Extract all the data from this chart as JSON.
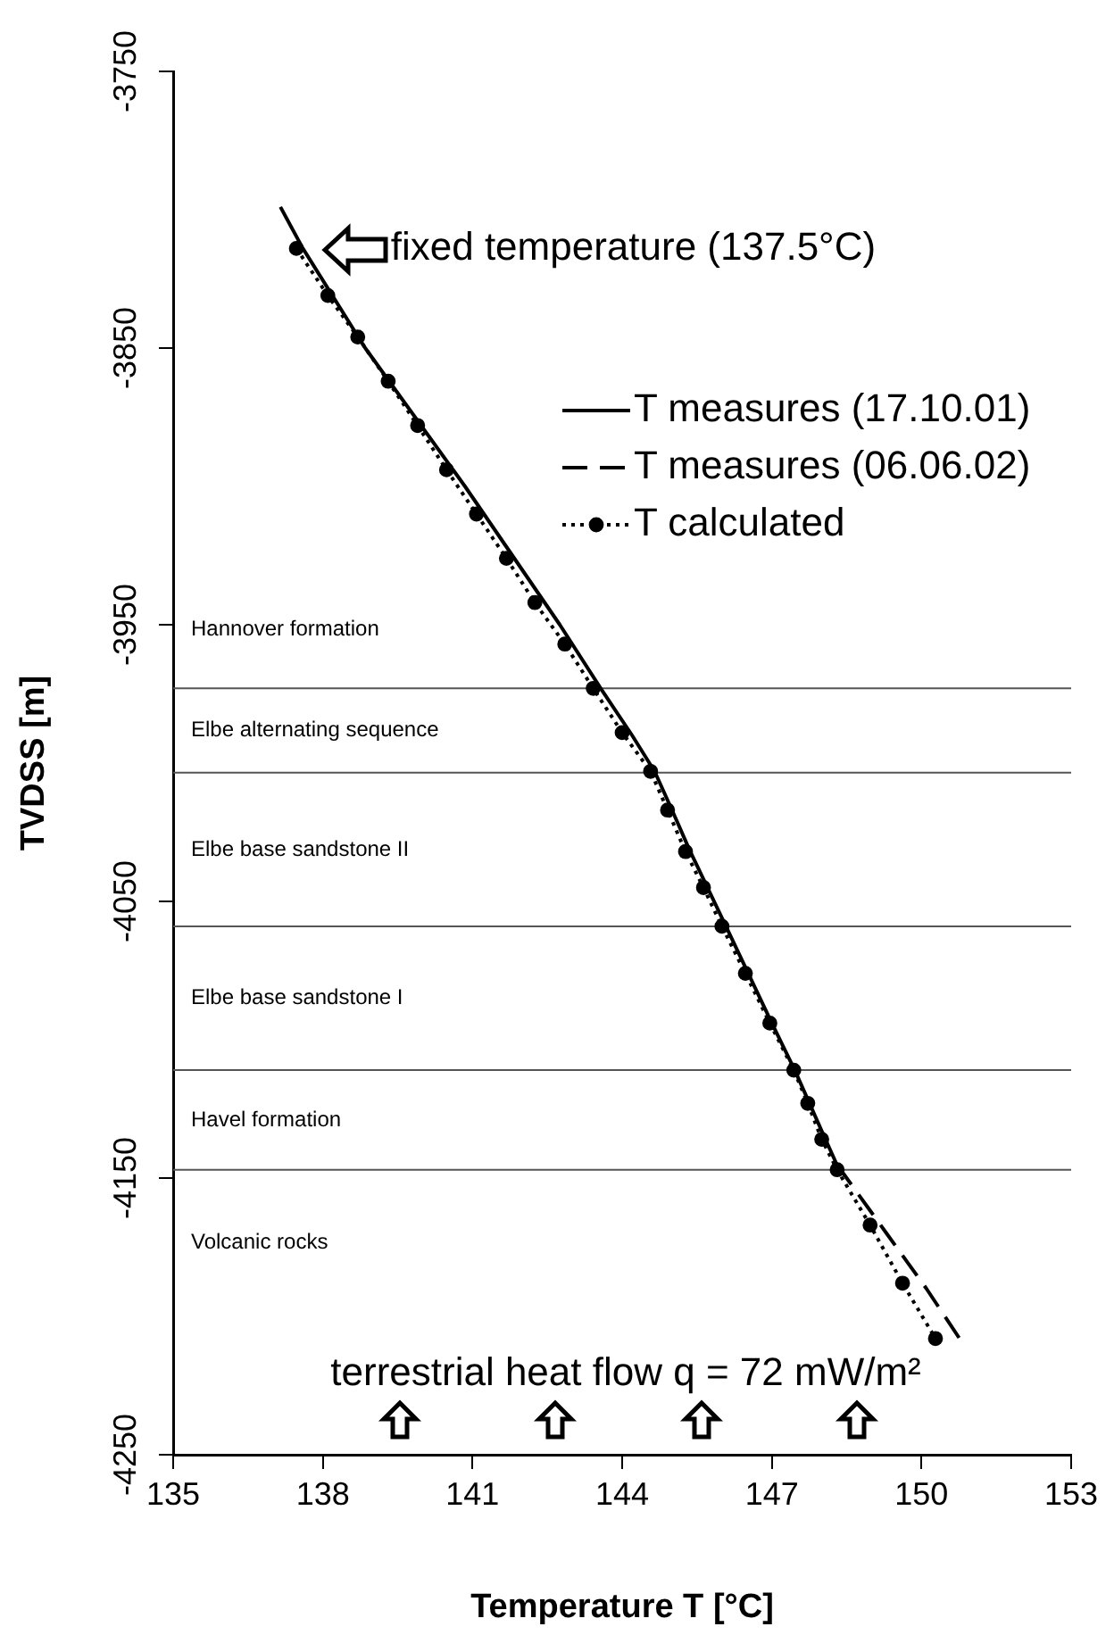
{
  "chart_data": {
    "type": "line",
    "xlabel": "Temperature T [°C]",
    "ylabel": "TVDSS [m]",
    "xlim": [
      135,
      153
    ],
    "xticks": [
      135,
      138,
      141,
      144,
      147,
      150,
      153
    ],
    "ylim": [
      -4250,
      -3750
    ],
    "yticks": [
      -4250,
      -4150,
      -4050,
      -3950,
      -3850,
      -3750
    ],
    "grid": false,
    "legend": "top right",
    "series": [
      {
        "name": "T measures (17.10.01)",
        "color": "#000000",
        "line_style": "solid",
        "marker": "none",
        "x": [
          137.15,
          137.6,
          138.85,
          140.85,
          142.75,
          143.57,
          144.2,
          144.65,
          145.0,
          145.34,
          146.08,
          147.0,
          147.46,
          148.05,
          148.35
        ],
        "values": [
          -3799,
          -3814,
          -3850,
          -3900,
          -3950,
          -3973,
          -3990,
          -4003,
          -4017,
          -4031,
          -4059,
          -4094,
          -4111,
          -4135,
          -4147
        ]
      },
      {
        "name": "T measures (06.06.02)",
        "color": "#000000",
        "line_style": "dashed",
        "marker": "none",
        "x": [
          148.3,
          149.3,
          150.1,
          150.8
        ],
        "values": [
          -4145,
          -4170,
          -4190,
          -4209
        ]
      },
      {
        "name": "T calculated",
        "color": "#000000",
        "line_style": "dotted",
        "marker": "circle",
        "x": [
          137.47,
          138.1,
          138.7,
          139.31,
          139.9,
          140.48,
          141.08,
          141.68,
          142.25,
          142.85,
          143.42,
          144.0,
          144.57,
          144.91,
          145.27,
          145.63,
          146.0,
          146.47,
          146.96,
          147.44,
          147.72,
          148.0,
          148.31,
          148.97,
          149.62,
          150.28
        ],
        "values": [
          -3814,
          -3831,
          -3846,
          -3862,
          -3878,
          -3894,
          -3910,
          -3926,
          -3942,
          -3957,
          -3973,
          -3989,
          -4003,
          -4017,
          -4032,
          -4045,
          -4059,
          -4076,
          -4094,
          -4111,
          -4123,
          -4136,
          -4147,
          -4167,
          -4188,
          -4208
        ]
      }
    ],
    "ref_lines": [
      {
        "axis": "y",
        "value": -3973,
        "color": "#555555"
      },
      {
        "axis": "y",
        "value": -4003.5,
        "color": "#555555"
      },
      {
        "axis": "y",
        "value": -4059,
        "color": "#555555"
      },
      {
        "axis": "y",
        "value": -4111,
        "color": "#555555"
      },
      {
        "axis": "y",
        "value": -4147,
        "color": "#555555"
      }
    ],
    "annotations": [
      {
        "text": "fixed temperature (137.5°C)",
        "x": 137.5,
        "y": -3814
      },
      "Hannover formation",
      "Elbe alternating sequence",
      "Elbe base sandstone II",
      "Elbe base sandstone I",
      "Havel formation",
      "Volcanic rocks",
      "terrestrial heat flow q = 72 mW/m²"
    ]
  }
}
